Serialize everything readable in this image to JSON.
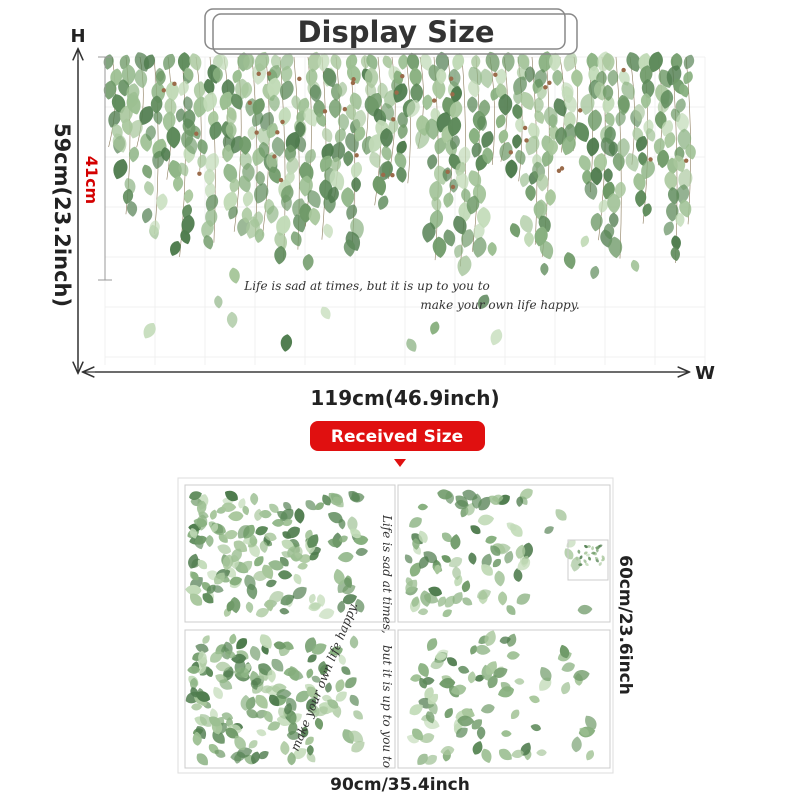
{
  "header": {
    "title": "Display Size"
  },
  "display": {
    "height_letter": "H",
    "height_label": "59cm(23.2inch)",
    "inner_label": "41cm",
    "quote_line1": "Life is sad at times, but it is up to you to",
    "quote_line2": "make your own life happy.",
    "width_letter": "W",
    "width_label": "119cm(46.9inch)"
  },
  "received": {
    "title": "Received Size",
    "height_label": "60cm/23.6inch",
    "width_label": "90cm/35.4inch",
    "sheet_text1": "Life is sad at times,",
    "sheet_text2": "make your own life happy.",
    "sheet_text3": "but it is up to you to"
  }
}
